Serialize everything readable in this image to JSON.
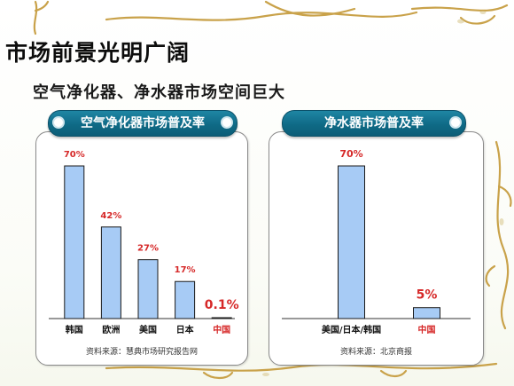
{
  "slide": {
    "title": "市场前景光明广阔",
    "subtitle": "空气净化器、净水器市场空间巨大"
  },
  "colors": {
    "bar_fill": "#a7cbf5",
    "bar_stroke": "#1a1a1a",
    "value_label": "#d62828",
    "highlight_label": "#d62828",
    "pill": "#0f6a86"
  },
  "chart_data": [
    {
      "type": "bar",
      "title": "空气净化器市场普及率",
      "categories": [
        "韩国",
        "欧洲",
        "美国",
        "日本",
        "中国"
      ],
      "values": [
        70,
        42,
        27,
        17,
        0.1
      ],
      "value_labels": [
        "70%",
        "42%",
        "27%",
        "17%",
        "0.1%"
      ],
      "highlight_category": "中国",
      "ylim": [
        0,
        70
      ],
      "grid": false,
      "source": "资料来源：慧典市场研究报告网"
    },
    {
      "type": "bar",
      "title": "净水器市场普及率",
      "categories": [
        "美国/日本/韩国",
        "中国"
      ],
      "values": [
        70,
        5
      ],
      "value_labels": [
        "70%",
        "5%"
      ],
      "highlight_category": "中国",
      "ylim": [
        0,
        70
      ],
      "grid": false,
      "source": "资料来源：北京商报"
    }
  ]
}
